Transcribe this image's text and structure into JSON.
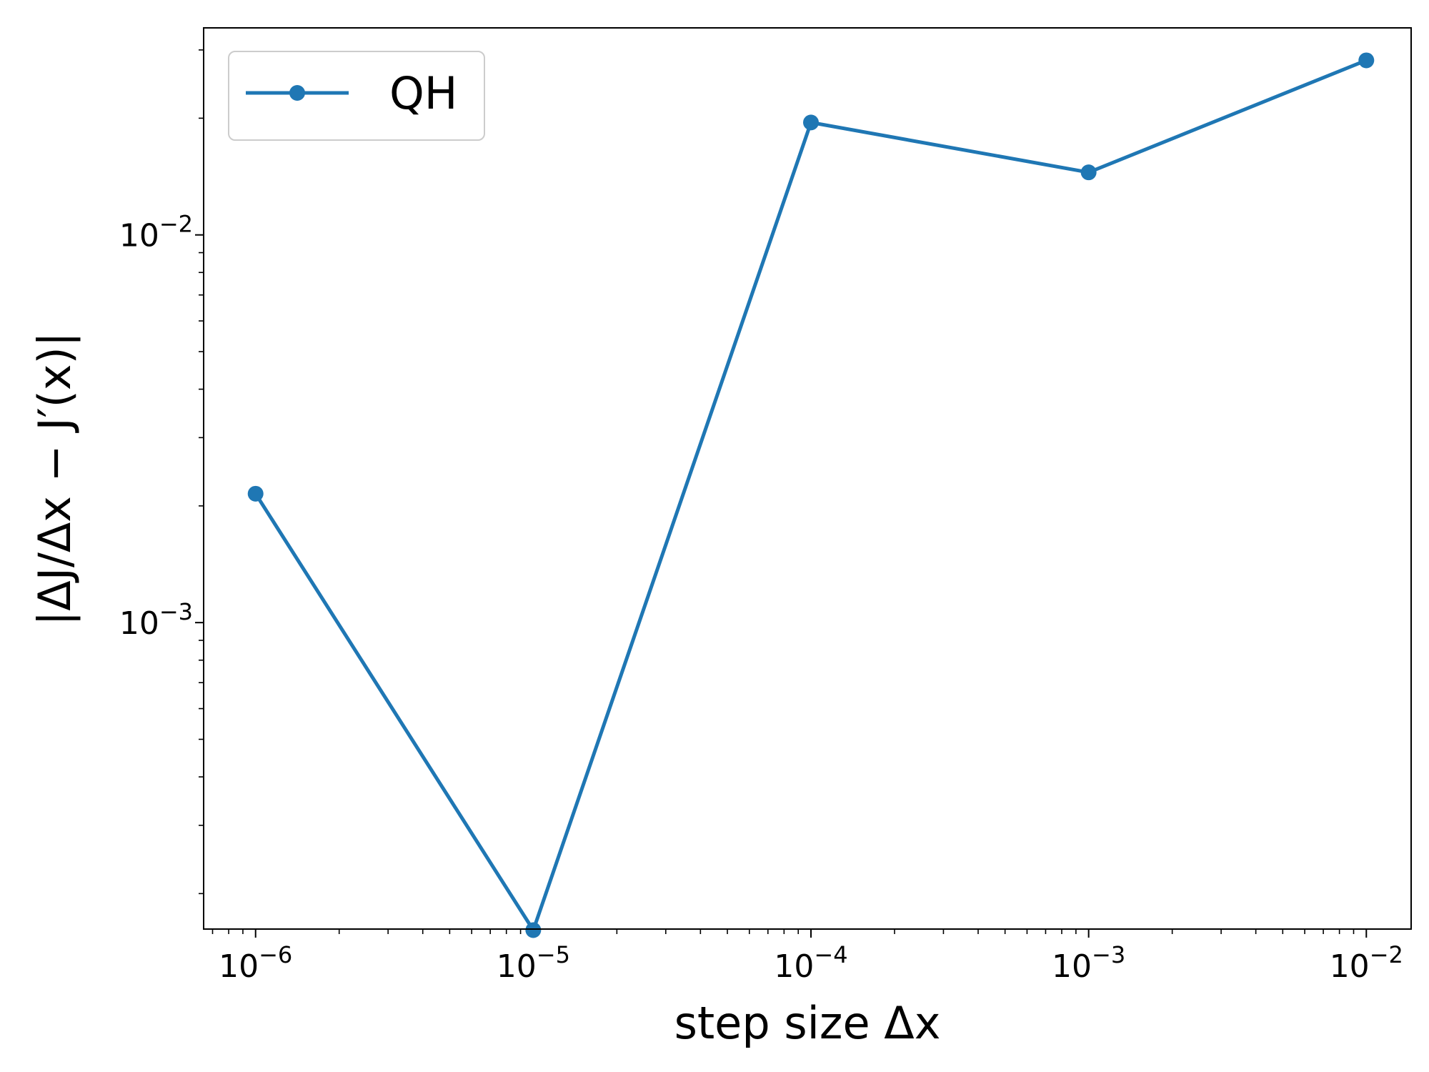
{
  "chart_data": {
    "type": "line",
    "title": "",
    "xlabel": "step size Δx",
    "ylabel": "|ΔJ/Δx − J′(x)|",
    "xscale": "log",
    "yscale": "log",
    "xlim": [
      6.5e-07,
      0.0145
    ],
    "ylim": [
      0.000162,
      0.0342
    ],
    "x_ticks": [
      {
        "value": 1e-06,
        "base": "10",
        "exp": "−6"
      },
      {
        "value": 1e-05,
        "base": "10",
        "exp": "−5"
      },
      {
        "value": 0.0001,
        "base": "10",
        "exp": "−4"
      },
      {
        "value": 0.001,
        "base": "10",
        "exp": "−3"
      },
      {
        "value": 0.01,
        "base": "10",
        "exp": "−2"
      }
    ],
    "y_ticks": [
      {
        "value": 0.001,
        "base": "10",
        "exp": "−3"
      },
      {
        "value": 0.01,
        "base": "10",
        "exp": "−2"
      }
    ],
    "grid": false,
    "legend_position": "top-left",
    "series": [
      {
        "name": "QH",
        "color": "#1f77b4",
        "marker": "circle",
        "x": [
          1e-06,
          1e-05,
          0.0001,
          0.001,
          0.01
        ],
        "y": [
          0.00215,
          0.000161,
          0.0195,
          0.0145,
          0.0282
        ]
      }
    ]
  }
}
